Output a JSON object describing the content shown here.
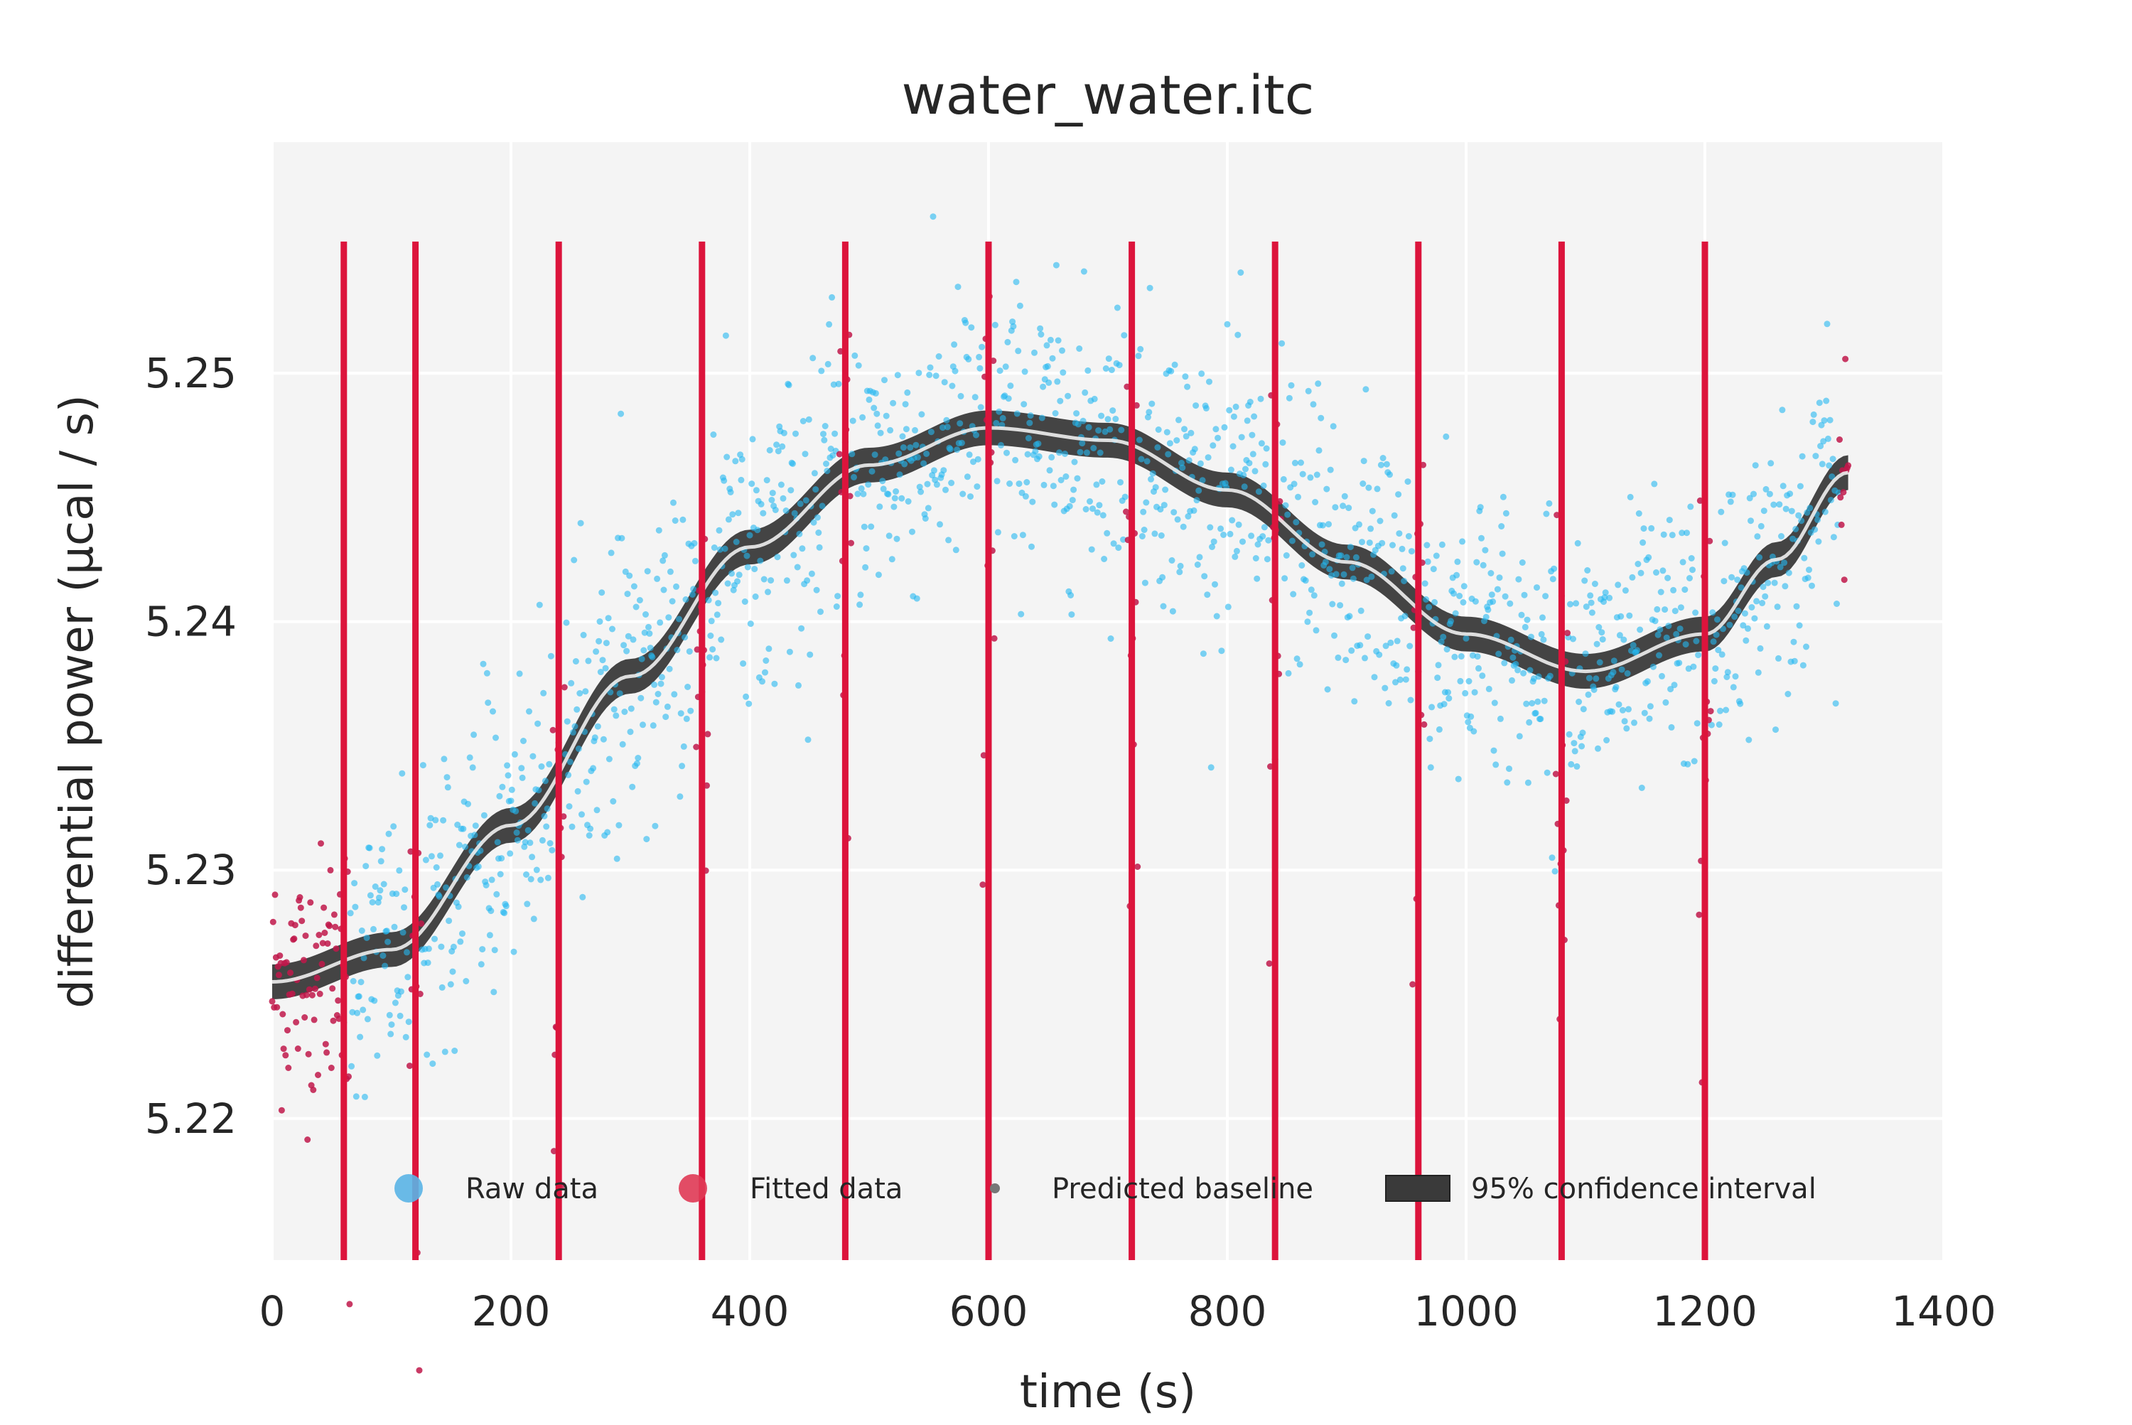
{
  "chart_data": {
    "type": "scatter",
    "title": "water_water.itc",
    "xlabel": "time (s)",
    "ylabel": "differential power (µcal / s)",
    "xlim": [
      0,
      1400
    ],
    "ylim": [
      5.2143,
      5.2593
    ],
    "x_ticks": [
      0,
      200,
      400,
      600,
      800,
      1000,
      1200,
      1400
    ],
    "x_tick_labels": [
      "0",
      "200",
      "400",
      "600",
      "800",
      "1000",
      "1200",
      "1400"
    ],
    "y_ticks": [
      5.22,
      5.23,
      5.24,
      5.25
    ],
    "y_tick_labels": [
      "5.22",
      "5.23",
      "5.24",
      "5.25"
    ],
    "grid": true,
    "legend_position": "bottom",
    "injection_times": [
      60,
      120,
      240,
      360,
      480,
      600,
      720,
      840,
      960,
      1080,
      1200
    ],
    "injection_line_range": [
      5.2143,
      5.2553
    ],
    "baseline": {
      "x": [
        0,
        100,
        200,
        300,
        400,
        500,
        600,
        700,
        800,
        900,
        1000,
        1100,
        1200,
        1260,
        1320
      ],
      "y": [
        5.2255,
        5.2268,
        5.2318,
        5.2378,
        5.243,
        5.2463,
        5.2478,
        5.2473,
        5.2453,
        5.2424,
        5.2395,
        5.238,
        5.2395,
        5.2425,
        5.246
      ]
    },
    "confidence_halfwidth": 0.0007,
    "raw_noise_sd": 0.0028,
    "raw_spike_range": [
      -0.019,
      0.006
    ],
    "colors": {
      "raw": "#25b8f0",
      "fitted": "#c0174a",
      "injection": "#dc143c",
      "baseline": "#555555",
      "confidence": "#3a3a3a",
      "plot_bg": "#f4f4f4",
      "grid": "#ffffff"
    },
    "legend": [
      {
        "label": "Raw data",
        "marker": "circle",
        "color": "#5ab4e6"
      },
      {
        "label": "Fitted data",
        "marker": "circle",
        "color": "#e03a55"
      },
      {
        "label": "Predicted baseline",
        "marker": "dot",
        "color": "#777777"
      },
      {
        "label": "95% confidence interval",
        "marker": "patch",
        "color": "#3a3a3a"
      }
    ]
  }
}
